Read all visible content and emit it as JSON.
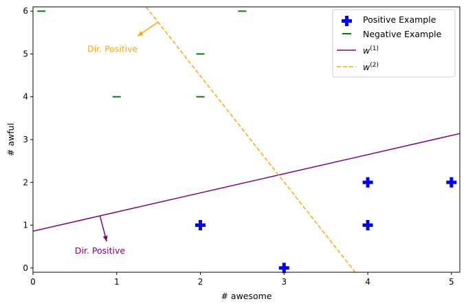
{
  "chart_data": {
    "type": "scatter",
    "xlabel": "# awesome",
    "ylabel": "# awful",
    "xlim": [
      0,
      5.1
    ],
    "ylim": [
      -0.1,
      6.1
    ],
    "xticks": [
      0,
      1,
      2,
      3,
      4,
      5
    ],
    "yticks": [
      0,
      1,
      2,
      3,
      4,
      5,
      6
    ],
    "grid": false,
    "legend_position": "top-right",
    "series": [
      {
        "name": "Positive Example",
        "kind": "points",
        "marker": "plus",
        "color": "#0000ff",
        "points": [
          [
            2,
            1
          ],
          [
            3,
            0
          ],
          [
            4,
            1
          ],
          [
            4,
            2
          ],
          [
            5,
            2
          ]
        ]
      },
      {
        "name": "Negative Example",
        "kind": "points",
        "marker": "dash",
        "color": "#008000",
        "points": [
          [
            0.1,
            6
          ],
          [
            1,
            4
          ],
          [
            2,
            4
          ],
          [
            2,
            5
          ],
          [
            2.5,
            6
          ]
        ]
      },
      {
        "name": "w",
        "name_superscript": "(1)",
        "kind": "line",
        "style": "solid",
        "color": "#800080",
        "points": [
          [
            0,
            0.86
          ],
          [
            5.1,
            3.14
          ]
        ]
      },
      {
        "name": "w",
        "name_superscript": "(2)",
        "kind": "line",
        "style": "dashed",
        "color": "#ffa500",
        "points": [
          [
            1.35,
            6.1
          ],
          [
            3.85,
            -0.1
          ]
        ]
      }
    ],
    "annotations": [
      {
        "text": "Dir. Positive",
        "color": "#ffa500",
        "text_at": [
          0.65,
          5.05
        ],
        "arrow_from": [
          1.5,
          5.75
        ],
        "arrow_to": [
          1.25,
          5.42
        ]
      },
      {
        "text": "Dir. Positive",
        "color": "#800080",
        "text_at": [
          0.5,
          0.33
        ],
        "arrow_from": [
          0.8,
          1.22
        ],
        "arrow_to": [
          0.88,
          0.62
        ]
      }
    ]
  }
}
